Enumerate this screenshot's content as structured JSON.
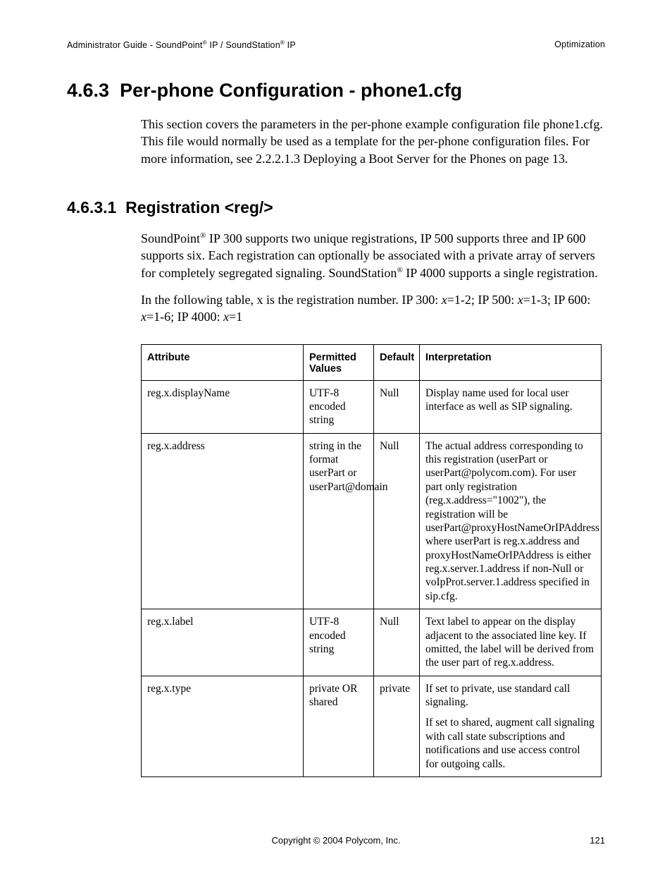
{
  "header": {
    "left_prefix": "Administrator Guide - SoundPoint",
    "left_mid": " IP / SoundStation",
    "left_suffix": " IP",
    "right": "Optimization"
  },
  "section": {
    "number": "4.6.3",
    "title": "Per-phone Configuration - phone1.cfg",
    "intro": "This section covers the parameters in the per-phone example configuration file phone1.cfg.  This file would normally be used as a template for the per-phone configuration files.  For more information, see 2.2.2.1.3 Deploying a Boot Server for the Phones on page 13."
  },
  "subsection": {
    "number": "4.6.3.1",
    "title": "Registration <reg/>",
    "para1_a": "SoundPoint",
    "para1_b": " IP 300 supports two unique registrations, IP 500 supports three and IP 600 supports six.  Each registration can optionally be associated with a private array of servers for completely segregated signaling.  SoundStation",
    "para1_c": " IP 4000 supports a single registration.",
    "para2_a": "In the following table, x is the registration number.  IP 300: ",
    "para2_b": "=1-2; IP 500: ",
    "para2_c": "=1-3; IP 600: ",
    "para2_d": "=1-6; IP 4000: ",
    "para2_e": "=1",
    "x": "x"
  },
  "table": {
    "headers": {
      "c1": "Attribute",
      "c2": "Permitted Values",
      "c3": "Default",
      "c4": "Interpretation"
    },
    "rows": [
      {
        "attr": "reg.x.displayName",
        "perm": "UTF-8 encoded string",
        "def": "Null",
        "interp": "Display name used for local user interface as well as SIP signaling."
      },
      {
        "attr": "reg.x.address",
        "perm": "string in the format userPart or userPart@domain",
        "def": "Null",
        "interp": "The actual address corresponding to this registration (userPart or userPart@polycom.com).  For user part only registration (reg.x.address=\"1002\"), the registration will be userPart@proxyHostNameOrIPAddress where userPart is reg.x.address and proxyHostNameOrIPAddress is either reg.x.server.1.address if non-Null or voIpProt.server.1.address specified in sip.cfg."
      },
      {
        "attr": "reg.x.label",
        "perm": "UTF-8 encoded string",
        "def": "Null",
        "interp": "Text label to appear on the display adjacent to the associated line key.  If omitted, the label will be derived from the user part of reg.x.address."
      },
      {
        "attr": "reg.x.type",
        "perm": "private OR shared",
        "def": "private",
        "interp_a": "If set to private, use standard call signaling.",
        "interp_b": "If set to shared, augment call signaling with call state subscriptions and notifications and use access control for outgoing calls."
      }
    ]
  },
  "footer": {
    "copyright": "Copyright © 2004 Polycom, Inc.",
    "page": "121"
  },
  "reg": "®"
}
